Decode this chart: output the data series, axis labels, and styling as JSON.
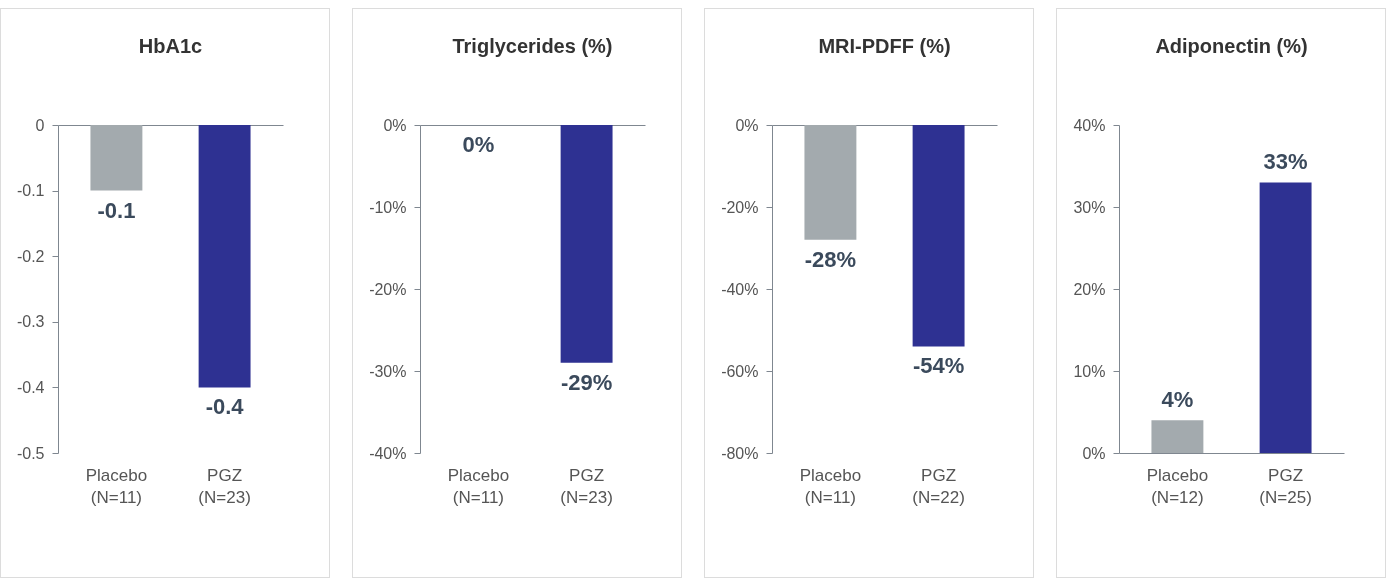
{
  "chart_data": [
    {
      "type": "bar",
      "title": "HbA1c",
      "categories": [
        "Placebo\n(N=11)",
        "PGZ\n(N=23)"
      ],
      "values": [
        -0.1,
        -0.4
      ],
      "colors": [
        "#a3aaae",
        "#2e3192"
      ],
      "value_labels": [
        "-0.1",
        "-0.4"
      ],
      "ylim": [
        -0.5,
        0
      ],
      "yticks": [
        -0.5,
        -0.4,
        -0.3,
        -0.2,
        -0.1,
        0
      ],
      "legend": false,
      "grid": false
    },
    {
      "type": "bar",
      "title": "Triglycerides (%)",
      "categories": [
        "Placebo\n(N=11)",
        "PGZ\n(N=23)"
      ],
      "values": [
        0,
        -29
      ],
      "colors": [
        "#a3aaae",
        "#2e3192"
      ],
      "value_labels": [
        "0%",
        "-29%"
      ],
      "ylim": [
        -40,
        0
      ],
      "yticks": [
        {
          "value": -40,
          "label": "-40%"
        },
        {
          "value": -30,
          "label": "-30%"
        },
        {
          "value": -20,
          "label": "-20%"
        },
        {
          "value": -10,
          "label": "-10%"
        },
        {
          "value": 0,
          "label": "0%"
        }
      ],
      "legend": false,
      "grid": false
    },
    {
      "type": "bar",
      "title": "MRI-PDFF (%)",
      "categories": [
        "Placebo\n(N=11)",
        "PGZ\n(N=22)"
      ],
      "values": [
        -28,
        -54
      ],
      "colors": [
        "#a3aaae",
        "#2e3192"
      ],
      "value_labels": [
        "-28%",
        "-54%"
      ],
      "ylim": [
        -80,
        0
      ],
      "yticks": [
        {
          "value": -80,
          "label": "-80%"
        },
        {
          "value": -60,
          "label": "-60%"
        },
        {
          "value": -40,
          "label": "-40%"
        },
        {
          "value": -20,
          "label": "-20%"
        },
        {
          "value": 0,
          "label": "0%"
        }
      ],
      "legend": false,
      "grid": false
    },
    {
      "type": "bar",
      "title": "Adiponectin (%)",
      "categories": [
        "Placebo\n(N=12)",
        "PGZ\n(N=25)"
      ],
      "values": [
        4,
        33
      ],
      "colors": [
        "#a3aaae",
        "#2e3192"
      ],
      "value_labels": [
        "4%",
        "33%"
      ],
      "ylim": [
        0,
        40
      ],
      "yticks": [
        {
          "value": 0,
          "label": "0%"
        },
        {
          "value": 10,
          "label": "10%"
        },
        {
          "value": 20,
          "label": "20%"
        },
        {
          "value": 30,
          "label": "30%"
        },
        {
          "value": 40,
          "label": "40%"
        }
      ],
      "legend": false,
      "grid": false
    }
  ]
}
